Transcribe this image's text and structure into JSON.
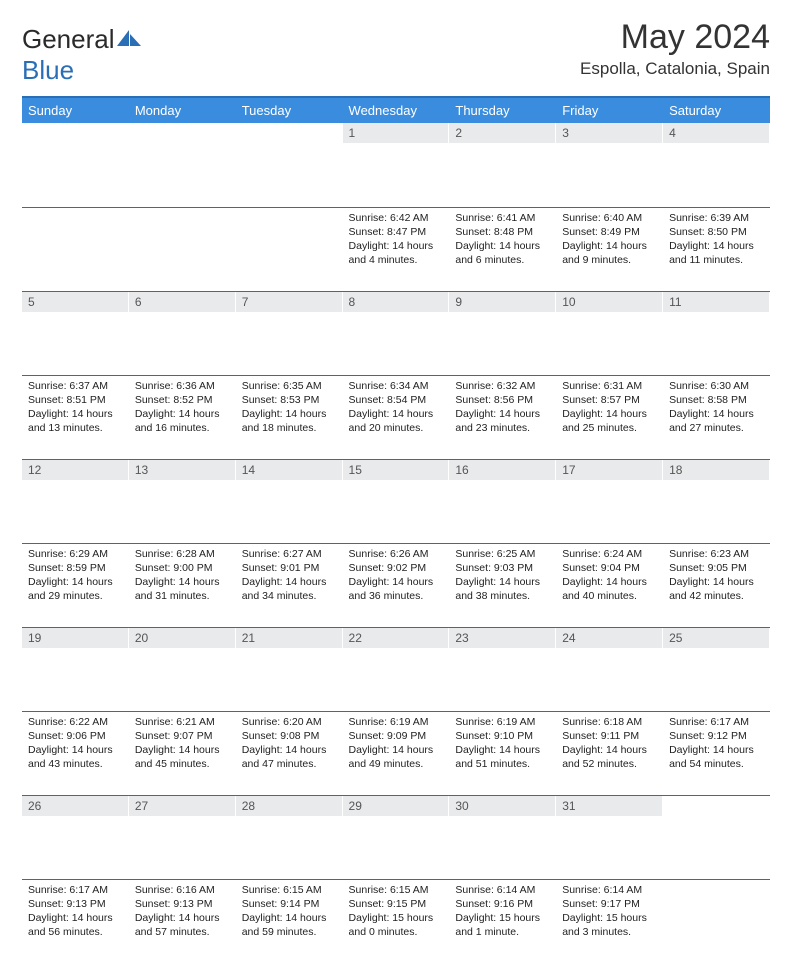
{
  "brand": {
    "name_a": "General",
    "name_b": "Blue"
  },
  "title": "May 2024",
  "location": "Espolla, Catalonia, Spain",
  "colors": {
    "header_bg": "#3a8dde",
    "header_border": "#2a6fb5",
    "daynum_bg": "#e9eaec",
    "text": "#222222"
  },
  "weekdays": [
    "Sunday",
    "Monday",
    "Tuesday",
    "Wednesday",
    "Thursday",
    "Friday",
    "Saturday"
  ],
  "weeks": [
    [
      {
        "n": "",
        "sunrise": "",
        "sunset": "",
        "daylight": ""
      },
      {
        "n": "",
        "sunrise": "",
        "sunset": "",
        "daylight": ""
      },
      {
        "n": "",
        "sunrise": "",
        "sunset": "",
        "daylight": ""
      },
      {
        "n": "1",
        "sunrise": "Sunrise: 6:42 AM",
        "sunset": "Sunset: 8:47 PM",
        "daylight": "Daylight: 14 hours and 4 minutes."
      },
      {
        "n": "2",
        "sunrise": "Sunrise: 6:41 AM",
        "sunset": "Sunset: 8:48 PM",
        "daylight": "Daylight: 14 hours and 6 minutes."
      },
      {
        "n": "3",
        "sunrise": "Sunrise: 6:40 AM",
        "sunset": "Sunset: 8:49 PM",
        "daylight": "Daylight: 14 hours and 9 minutes."
      },
      {
        "n": "4",
        "sunrise": "Sunrise: 6:39 AM",
        "sunset": "Sunset: 8:50 PM",
        "daylight": "Daylight: 14 hours and 11 minutes."
      }
    ],
    [
      {
        "n": "5",
        "sunrise": "Sunrise: 6:37 AM",
        "sunset": "Sunset: 8:51 PM",
        "daylight": "Daylight: 14 hours and 13 minutes."
      },
      {
        "n": "6",
        "sunrise": "Sunrise: 6:36 AM",
        "sunset": "Sunset: 8:52 PM",
        "daylight": "Daylight: 14 hours and 16 minutes."
      },
      {
        "n": "7",
        "sunrise": "Sunrise: 6:35 AM",
        "sunset": "Sunset: 8:53 PM",
        "daylight": "Daylight: 14 hours and 18 minutes."
      },
      {
        "n": "8",
        "sunrise": "Sunrise: 6:34 AM",
        "sunset": "Sunset: 8:54 PM",
        "daylight": "Daylight: 14 hours and 20 minutes."
      },
      {
        "n": "9",
        "sunrise": "Sunrise: 6:32 AM",
        "sunset": "Sunset: 8:56 PM",
        "daylight": "Daylight: 14 hours and 23 minutes."
      },
      {
        "n": "10",
        "sunrise": "Sunrise: 6:31 AM",
        "sunset": "Sunset: 8:57 PM",
        "daylight": "Daylight: 14 hours and 25 minutes."
      },
      {
        "n": "11",
        "sunrise": "Sunrise: 6:30 AM",
        "sunset": "Sunset: 8:58 PM",
        "daylight": "Daylight: 14 hours and 27 minutes."
      }
    ],
    [
      {
        "n": "12",
        "sunrise": "Sunrise: 6:29 AM",
        "sunset": "Sunset: 8:59 PM",
        "daylight": "Daylight: 14 hours and 29 minutes."
      },
      {
        "n": "13",
        "sunrise": "Sunrise: 6:28 AM",
        "sunset": "Sunset: 9:00 PM",
        "daylight": "Daylight: 14 hours and 31 minutes."
      },
      {
        "n": "14",
        "sunrise": "Sunrise: 6:27 AM",
        "sunset": "Sunset: 9:01 PM",
        "daylight": "Daylight: 14 hours and 34 minutes."
      },
      {
        "n": "15",
        "sunrise": "Sunrise: 6:26 AM",
        "sunset": "Sunset: 9:02 PM",
        "daylight": "Daylight: 14 hours and 36 minutes."
      },
      {
        "n": "16",
        "sunrise": "Sunrise: 6:25 AM",
        "sunset": "Sunset: 9:03 PM",
        "daylight": "Daylight: 14 hours and 38 minutes."
      },
      {
        "n": "17",
        "sunrise": "Sunrise: 6:24 AM",
        "sunset": "Sunset: 9:04 PM",
        "daylight": "Daylight: 14 hours and 40 minutes."
      },
      {
        "n": "18",
        "sunrise": "Sunrise: 6:23 AM",
        "sunset": "Sunset: 9:05 PM",
        "daylight": "Daylight: 14 hours and 42 minutes."
      }
    ],
    [
      {
        "n": "19",
        "sunrise": "Sunrise: 6:22 AM",
        "sunset": "Sunset: 9:06 PM",
        "daylight": "Daylight: 14 hours and 43 minutes."
      },
      {
        "n": "20",
        "sunrise": "Sunrise: 6:21 AM",
        "sunset": "Sunset: 9:07 PM",
        "daylight": "Daylight: 14 hours and 45 minutes."
      },
      {
        "n": "21",
        "sunrise": "Sunrise: 6:20 AM",
        "sunset": "Sunset: 9:08 PM",
        "daylight": "Daylight: 14 hours and 47 minutes."
      },
      {
        "n": "22",
        "sunrise": "Sunrise: 6:19 AM",
        "sunset": "Sunset: 9:09 PM",
        "daylight": "Daylight: 14 hours and 49 minutes."
      },
      {
        "n": "23",
        "sunrise": "Sunrise: 6:19 AM",
        "sunset": "Sunset: 9:10 PM",
        "daylight": "Daylight: 14 hours and 51 minutes."
      },
      {
        "n": "24",
        "sunrise": "Sunrise: 6:18 AM",
        "sunset": "Sunset: 9:11 PM",
        "daylight": "Daylight: 14 hours and 52 minutes."
      },
      {
        "n": "25",
        "sunrise": "Sunrise: 6:17 AM",
        "sunset": "Sunset: 9:12 PM",
        "daylight": "Daylight: 14 hours and 54 minutes."
      }
    ],
    [
      {
        "n": "26",
        "sunrise": "Sunrise: 6:17 AM",
        "sunset": "Sunset: 9:13 PM",
        "daylight": "Daylight: 14 hours and 56 minutes."
      },
      {
        "n": "27",
        "sunrise": "Sunrise: 6:16 AM",
        "sunset": "Sunset: 9:13 PM",
        "daylight": "Daylight: 14 hours and 57 minutes."
      },
      {
        "n": "28",
        "sunrise": "Sunrise: 6:15 AM",
        "sunset": "Sunset: 9:14 PM",
        "daylight": "Daylight: 14 hours and 59 minutes."
      },
      {
        "n": "29",
        "sunrise": "Sunrise: 6:15 AM",
        "sunset": "Sunset: 9:15 PM",
        "daylight": "Daylight: 15 hours and 0 minutes."
      },
      {
        "n": "30",
        "sunrise": "Sunrise: 6:14 AM",
        "sunset": "Sunset: 9:16 PM",
        "daylight": "Daylight: 15 hours and 1 minute."
      },
      {
        "n": "31",
        "sunrise": "Sunrise: 6:14 AM",
        "sunset": "Sunset: 9:17 PM",
        "daylight": "Daylight: 15 hours and 3 minutes."
      },
      {
        "n": "",
        "sunrise": "",
        "sunset": "",
        "daylight": ""
      }
    ]
  ]
}
